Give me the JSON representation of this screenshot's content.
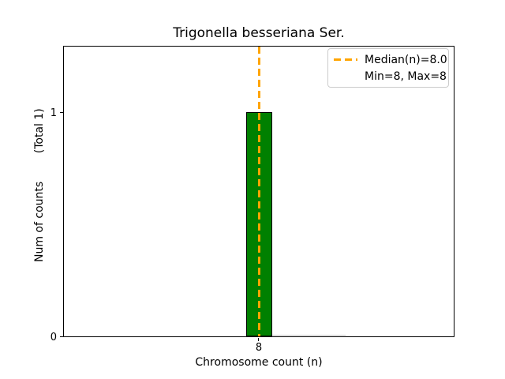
{
  "figure": {
    "title": "Trigonella besseriana Ser.",
    "xlabel": "Chromosome count (n)",
    "ylabel": "Num of counts        (Total 1)"
  },
  "axes": {
    "x_ticks": [
      "8"
    ],
    "y_ticks": [
      "0",
      "1"
    ]
  },
  "legend": {
    "median_label": "Median(n)=8.0",
    "minmax_label": "Min=8, Max=8",
    "position": "upper right"
  },
  "colors": {
    "bar_fill": "#008000",
    "bar_edge": "#000000",
    "median_line": "#FFA500",
    "legend_border": "#cccccc",
    "zero_bin_line": "#c8c8c8",
    "text": "#000000",
    "background": "#ffffff"
  },
  "chart_data": {
    "type": "bar",
    "subtype": "histogram",
    "categories": [
      8
    ],
    "values": [
      1
    ],
    "title": "Trigonella besseriana Ser.",
    "xlabel": "Chromosome count (n)",
    "ylabel": "Num of counts        (Total 1)",
    "total_counts": 1,
    "median_n": 8.0,
    "min_n": 8,
    "max_n": 8,
    "x_tick_labels": [
      "8"
    ],
    "y_tick_labels": [
      "0",
      "1"
    ],
    "ylim": [
      0,
      1.3
    ],
    "grid": false,
    "legend_entries": [
      "Median(n)=8.0",
      "Min=8, Max=8"
    ],
    "legend_position": "upper right",
    "bar_color": "#008000",
    "median_line_color": "#FFA500",
    "median_line_style": "dashed vertical at x=8"
  }
}
